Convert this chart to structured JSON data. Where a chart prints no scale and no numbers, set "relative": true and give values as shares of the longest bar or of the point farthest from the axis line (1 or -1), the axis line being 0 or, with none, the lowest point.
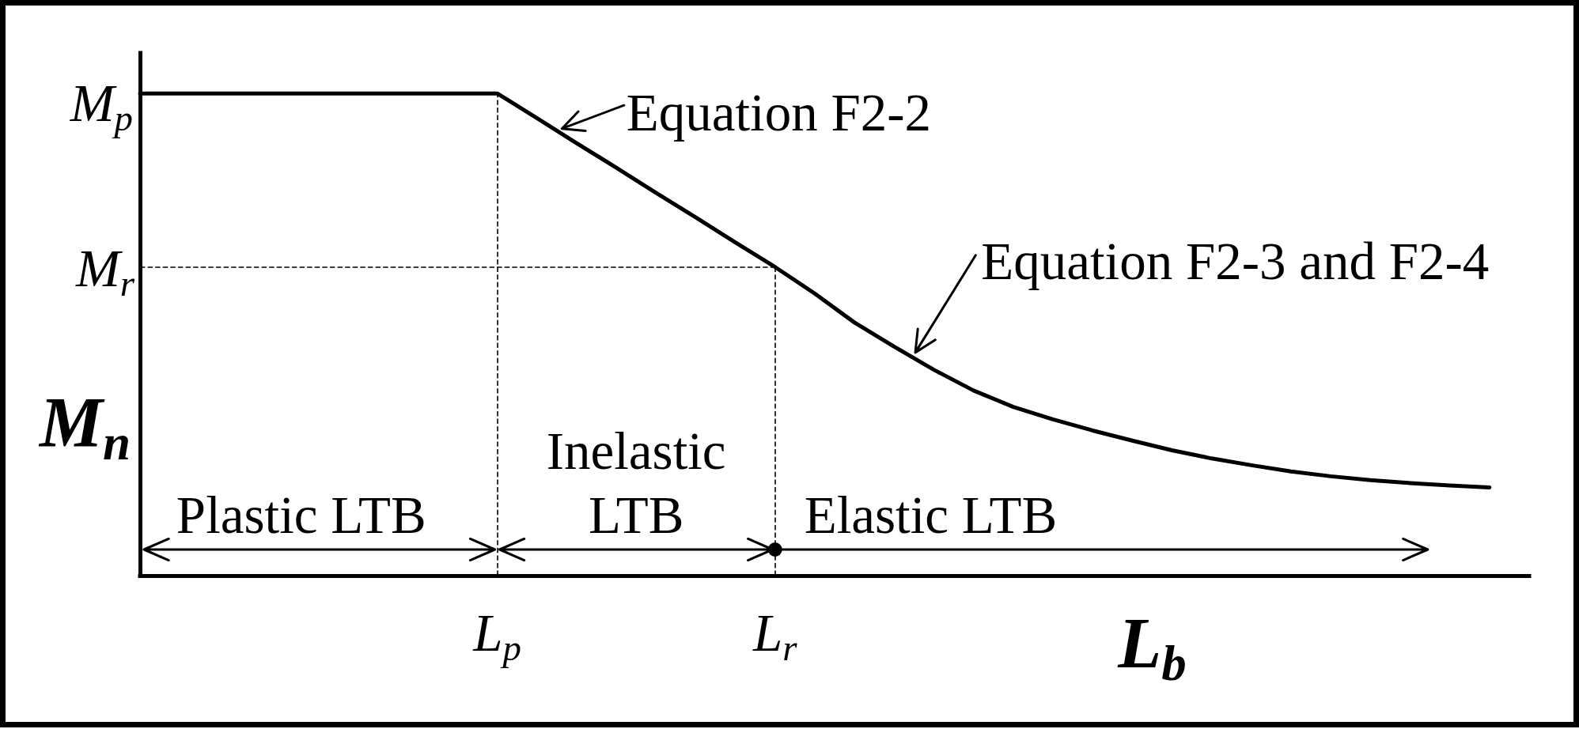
{
  "chart_data": {
    "type": "line",
    "relative": true,
    "xlabel": "L$_{b}$",
    "ylabel": "M$_{n}$",
    "color": "#000000",
    "categories": [
      null,
      null,
      null,
      null,
      null,
      null,
      null,
      null,
      null,
      "L$_{p}$",
      null,
      null,
      null,
      null,
      null,
      null,
      "L$_{r}$",
      null,
      null,
      null,
      null,
      null,
      null,
      null,
      null,
      null,
      null,
      null,
      null,
      null,
      null,
      null,
      null,
      null,
      null,
      null
    ],
    "values": [
      1,
      1,
      1,
      1,
      1,
      1,
      1,
      1,
      1,
      1,
      0.949,
      0.897,
      0.846,
      0.794,
      0.743,
      0.691,
      0.64,
      0.585,
      0.525,
      0.475,
      0.427,
      0.384,
      0.35,
      0.324,
      0.301,
      0.28,
      0.26,
      0.243,
      0.229,
      0.216,
      0.206,
      0.198,
      0.192,
      0.187,
      0.183,
      null
    ],
    "ref_lines": [
      {
        "axis": "x",
        "value": "L$_{p}$",
        "line_style": "dashed",
        "color": "#000000"
      },
      {
        "axis": "x",
        "value": "L$_{r}$",
        "line_style": "dashed",
        "color": "#000000"
      },
      {
        "axis": "y",
        "value": 0.64,
        "label": "M$_{r}$",
        "line_style": "dashed",
        "color": "#000000"
      }
    ],
    "annotations": [
      "Equation F2-2",
      "Equation F2-3 and F2-4",
      "Plastic LTB",
      "Inelastic LTB",
      "Elastic LTB",
      "M$_{p}$"
    ]
  }
}
